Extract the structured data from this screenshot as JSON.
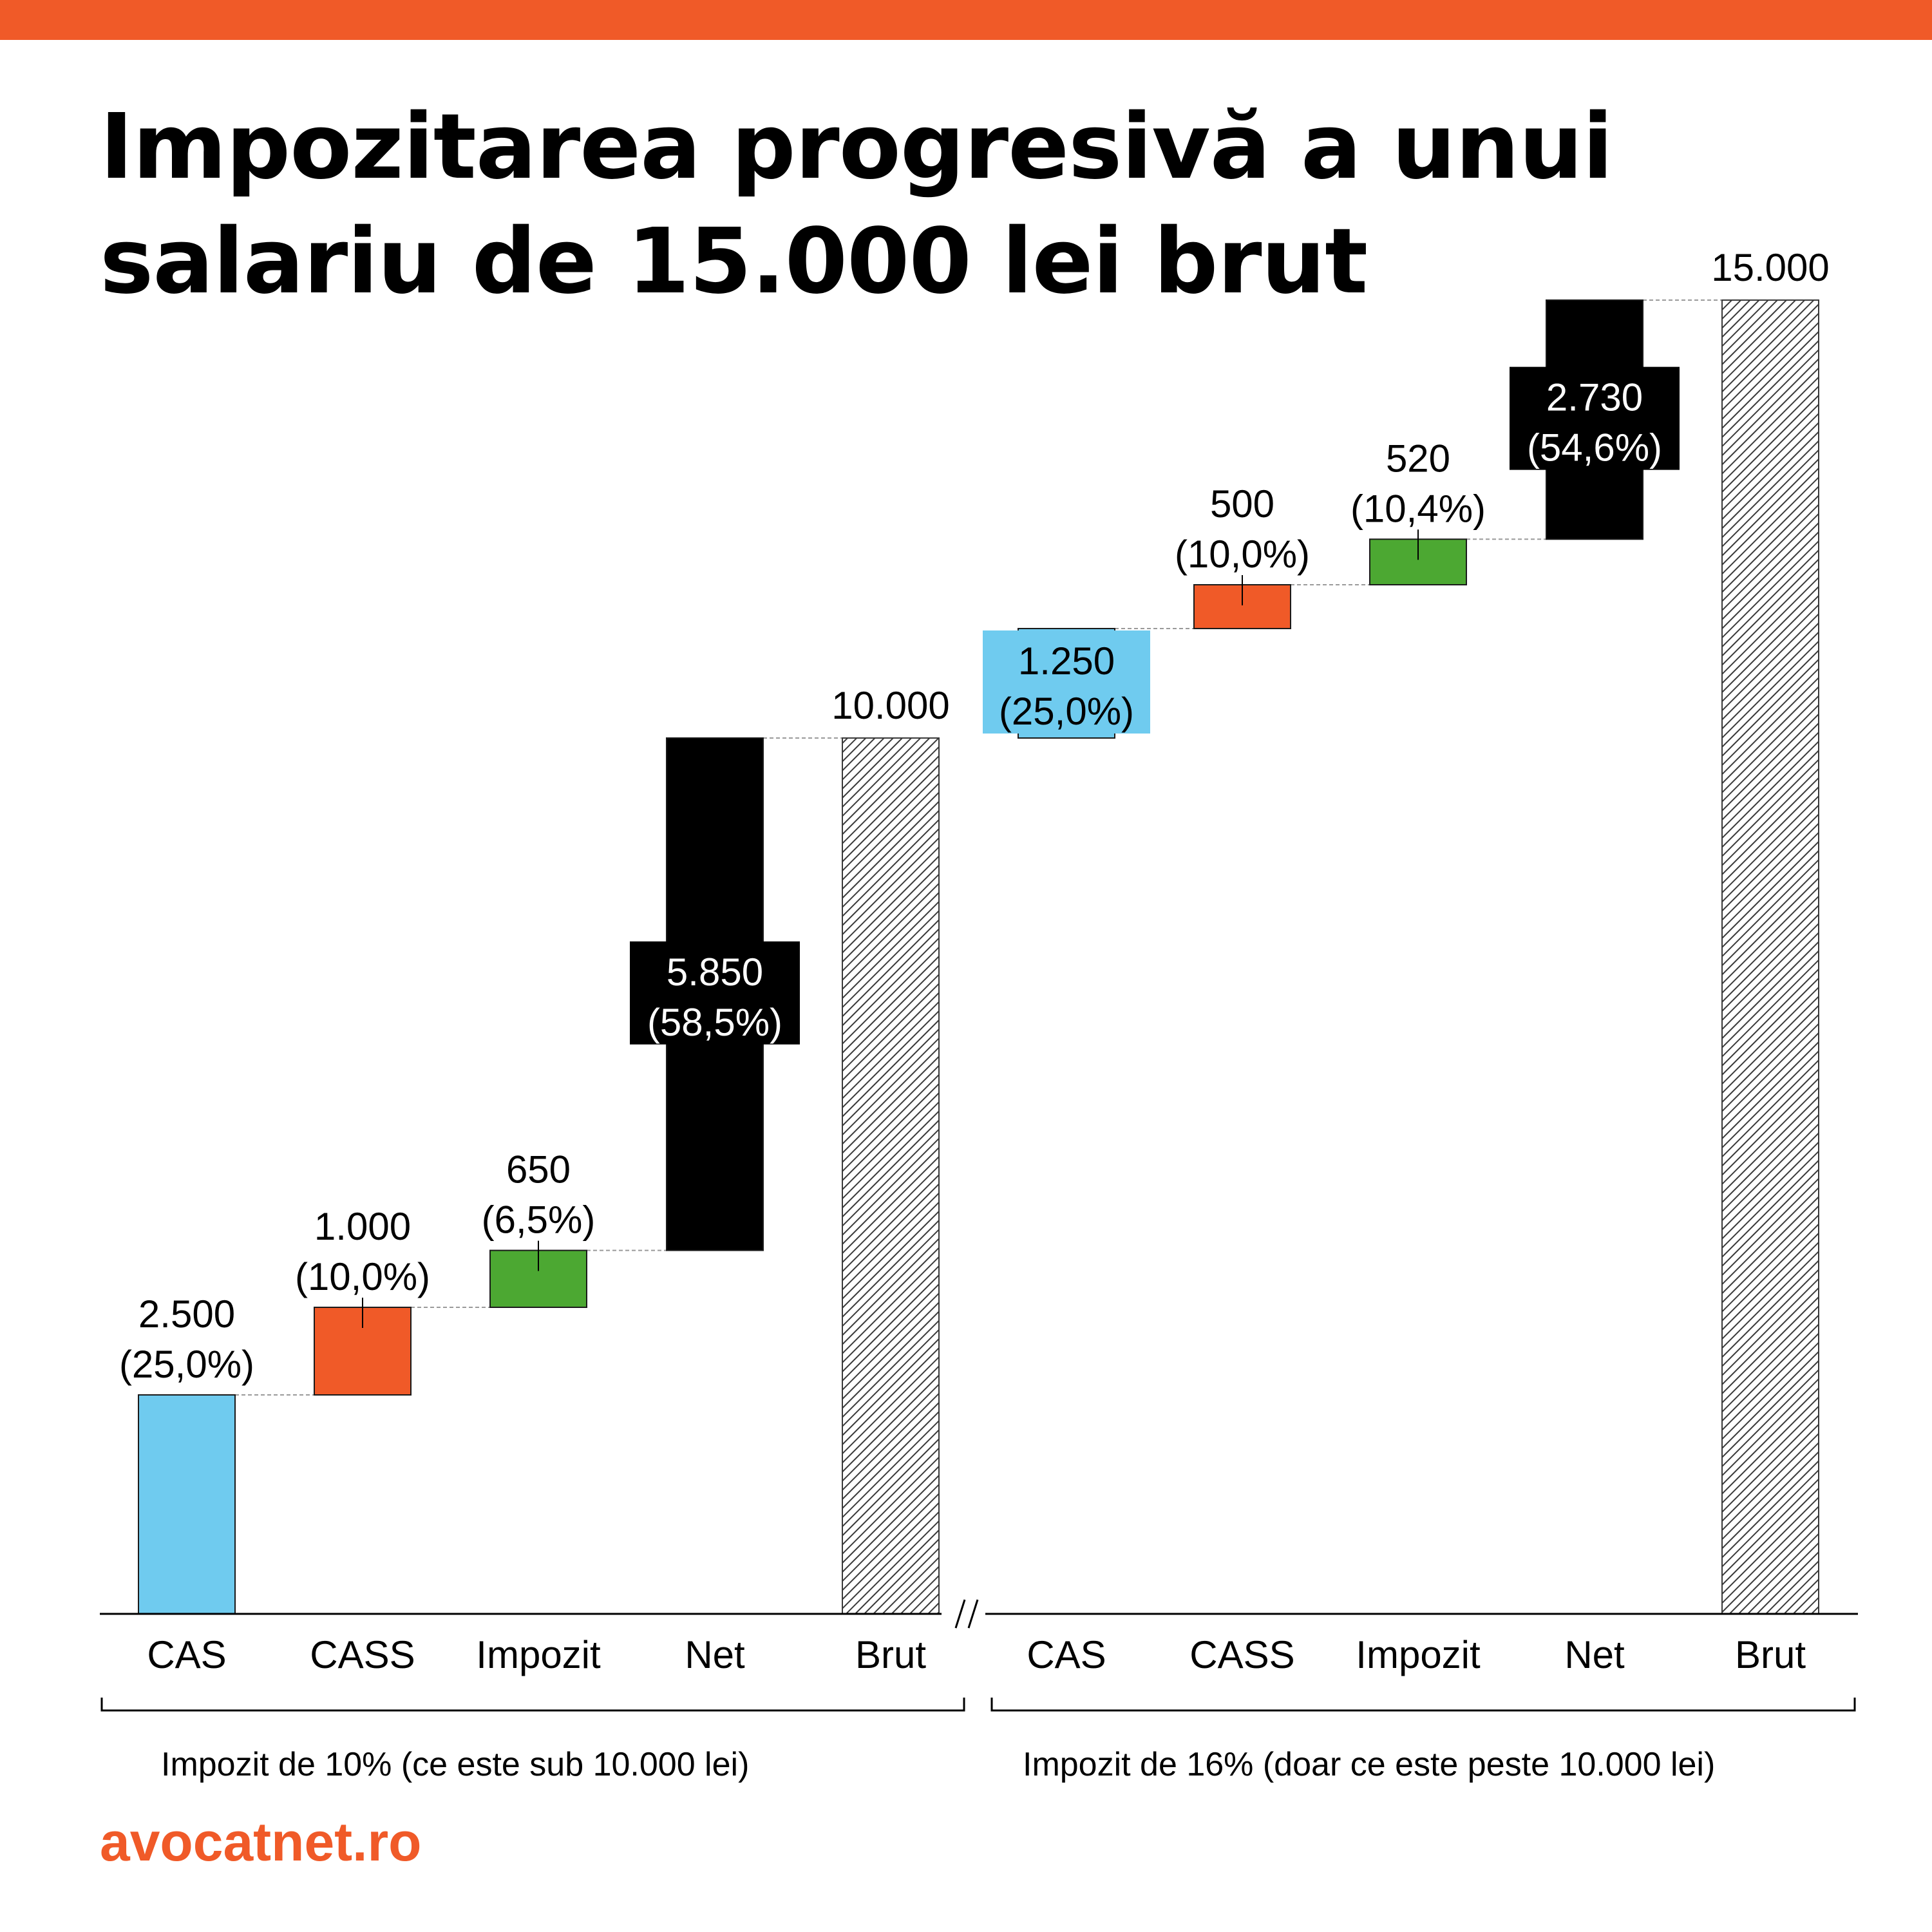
{
  "header": {
    "title_line1": "Impozitarea progresivă a unui",
    "title_line2": "salariu de 15.000 lei brut"
  },
  "colors": {
    "accent": "#f05a28",
    "cas": "#6fcbef",
    "cass": "#f05a28",
    "impozit": "#4ca832",
    "net": "#000000",
    "brut": "hatched-gray"
  },
  "chart_data": {
    "type": "waterfall",
    "axis_break": true,
    "ylim": [
      0,
      15000
    ],
    "groups": [
      {
        "caption": "Impozit de 10% (ce este sub 10.000 lei)",
        "base": 0,
        "bars": [
          {
            "category": "CAS",
            "value": 2500,
            "label": "2.500",
            "pct": "(25,0%)",
            "role": "cas"
          },
          {
            "category": "CASS",
            "value": 1000,
            "label": "1.000",
            "pct": "(10,0%)",
            "role": "cass"
          },
          {
            "category": "Impozit",
            "value": 650,
            "label": "650",
            "pct": "(6,5%)",
            "role": "impozit"
          },
          {
            "category": "Net",
            "value": 5850,
            "label": "5.850",
            "pct": "(58,5%)",
            "role": "net"
          },
          {
            "category": "Brut",
            "value": 10000,
            "label": "10.000",
            "pct": "",
            "role": "brut",
            "total": true
          }
        ]
      },
      {
        "caption": "Impozit de 16% (doar ce este peste 10.000 lei)",
        "base": 10000,
        "bars": [
          {
            "category": "CAS",
            "value": 1250,
            "label": "1.250",
            "pct": "(25,0%)",
            "role": "cas"
          },
          {
            "category": "CASS",
            "value": 500,
            "label": "500",
            "pct": "(10,0%)",
            "role": "cass"
          },
          {
            "category": "Impozit",
            "value": 520,
            "label": "520",
            "pct": "(10,4%)",
            "role": "impozit"
          },
          {
            "category": "Net",
            "value": 2730,
            "label": "2.730",
            "pct": "(54,6%)",
            "role": "net"
          },
          {
            "category": "Brut",
            "value": 15000,
            "label": "15.000",
            "pct": "",
            "role": "brut",
            "total": true
          }
        ]
      }
    ]
  },
  "footer": {
    "brand": "avocatnet.ro"
  }
}
